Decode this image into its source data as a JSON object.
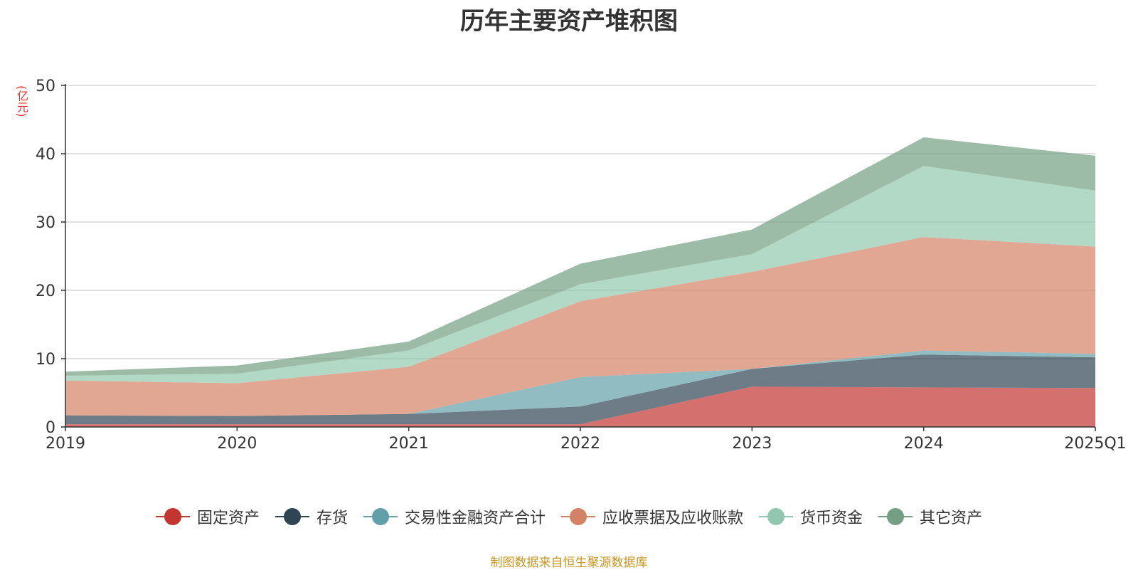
{
  "title": "历年主要资产堆积图",
  "source_note": "制图数据来自恒生聚源数据库",
  "chart_data": {
    "type": "area",
    "stacked": true,
    "ylabel": "(亿元)",
    "ylim": [
      0,
      50
    ],
    "yticks": [
      0,
      10,
      20,
      30,
      40,
      50
    ],
    "grid": true,
    "legend_position": "bottom",
    "categories": [
      "2019",
      "2020",
      "2021",
      "2022",
      "2023",
      "2024",
      "2025Q1"
    ],
    "series": [
      {
        "name": "固定资产",
        "color": "#c23531",
        "values": [
          0.4,
          0.4,
          0.4,
          0.4,
          5.9,
          5.8,
          5.7
        ]
      },
      {
        "name": "存货",
        "color": "#2f4554",
        "values": [
          1.3,
          1.2,
          1.5,
          2.6,
          2.6,
          4.8,
          4.5
        ]
      },
      {
        "name": "交易性金融资产合计",
        "color": "#61a0a8",
        "values": [
          0.0,
          0.0,
          0.0,
          4.3,
          0.0,
          0.6,
          0.5
        ]
      },
      {
        "name": "应收票据及应收账款",
        "color": "#d48265",
        "values": [
          5.1,
          4.8,
          6.9,
          11.1,
          14.2,
          16.6,
          15.7
        ]
      },
      {
        "name": "货币资金",
        "color": "#91c7ae",
        "values": [
          0.7,
          1.4,
          2.4,
          2.5,
          2.6,
          10.4,
          8.2
        ]
      },
      {
        "name": "其它资产",
        "color": "#749f83",
        "values": [
          0.6,
          1.2,
          1.3,
          3.0,
          3.6,
          4.2,
          5.1
        ]
      }
    ]
  }
}
